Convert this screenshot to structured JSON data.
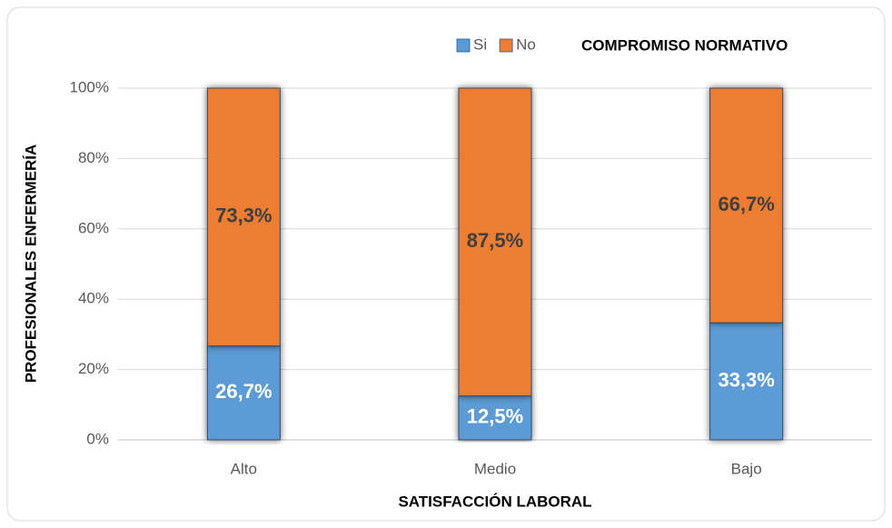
{
  "chart_data": {
    "type": "stacked_bar",
    "title": "COMPROMISO NORMATIVO",
    "x_label": "SATISFACCIÓN LABORAL",
    "y_label": "PROFESIONALES ENFERMERÍA",
    "categories": [
      "Alto",
      "Medio",
      "Bajo"
    ],
    "series": [
      {
        "name": "Si",
        "color": "#5b9bd5",
        "values": [
          26.7,
          12.5,
          33.3
        ],
        "value_labels": [
          "26,7%",
          "12,5%",
          "33,3%"
        ]
      },
      {
        "name": "No",
        "color": "#ed7d31",
        "values": [
          73.3,
          87.5,
          66.7
        ],
        "value_labels": [
          "73,3%",
          "87,5%",
          "66,7%"
        ]
      }
    ],
    "ylim": [
      0,
      100
    ],
    "yticks": [
      {
        "value": 0,
        "label": "0%"
      },
      {
        "value": 20,
        "label": "20%"
      },
      {
        "value": 40,
        "label": "40%"
      },
      {
        "value": 60,
        "label": "60%"
      },
      {
        "value": 80,
        "label": "80%"
      },
      {
        "value": 100,
        "label": "100%"
      }
    ],
    "grid": true,
    "legend": "top"
  }
}
